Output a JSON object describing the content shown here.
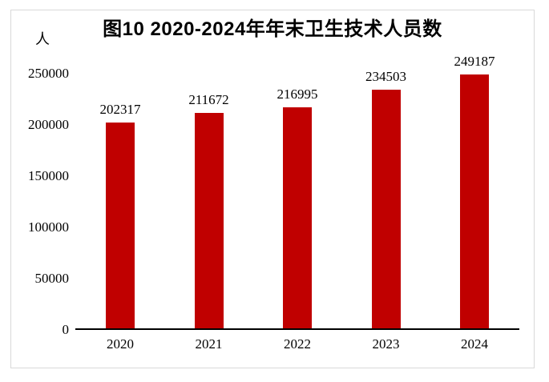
{
  "figure": {
    "background_color": "#ffffff",
    "frame_border_color": "#d9d9d9",
    "axis_line_color": "#000000",
    "text_color": "#000000"
  },
  "chart_data": {
    "type": "bar",
    "title": "图10 2020-2024年年末卫生技术人员数",
    "xlabel": "",
    "ylabel": "人",
    "categories": [
      "2020",
      "2021",
      "2022",
      "2023",
      "2024"
    ],
    "values": [
      202317,
      211672,
      216995,
      234503,
      249187
    ],
    "ylim": [
      0,
      250000
    ],
    "yticks": [
      0,
      50000,
      100000,
      150000,
      200000,
      250000
    ],
    "bar_color": "#c00000",
    "data_labels": true,
    "grid": false,
    "legend": false
  }
}
